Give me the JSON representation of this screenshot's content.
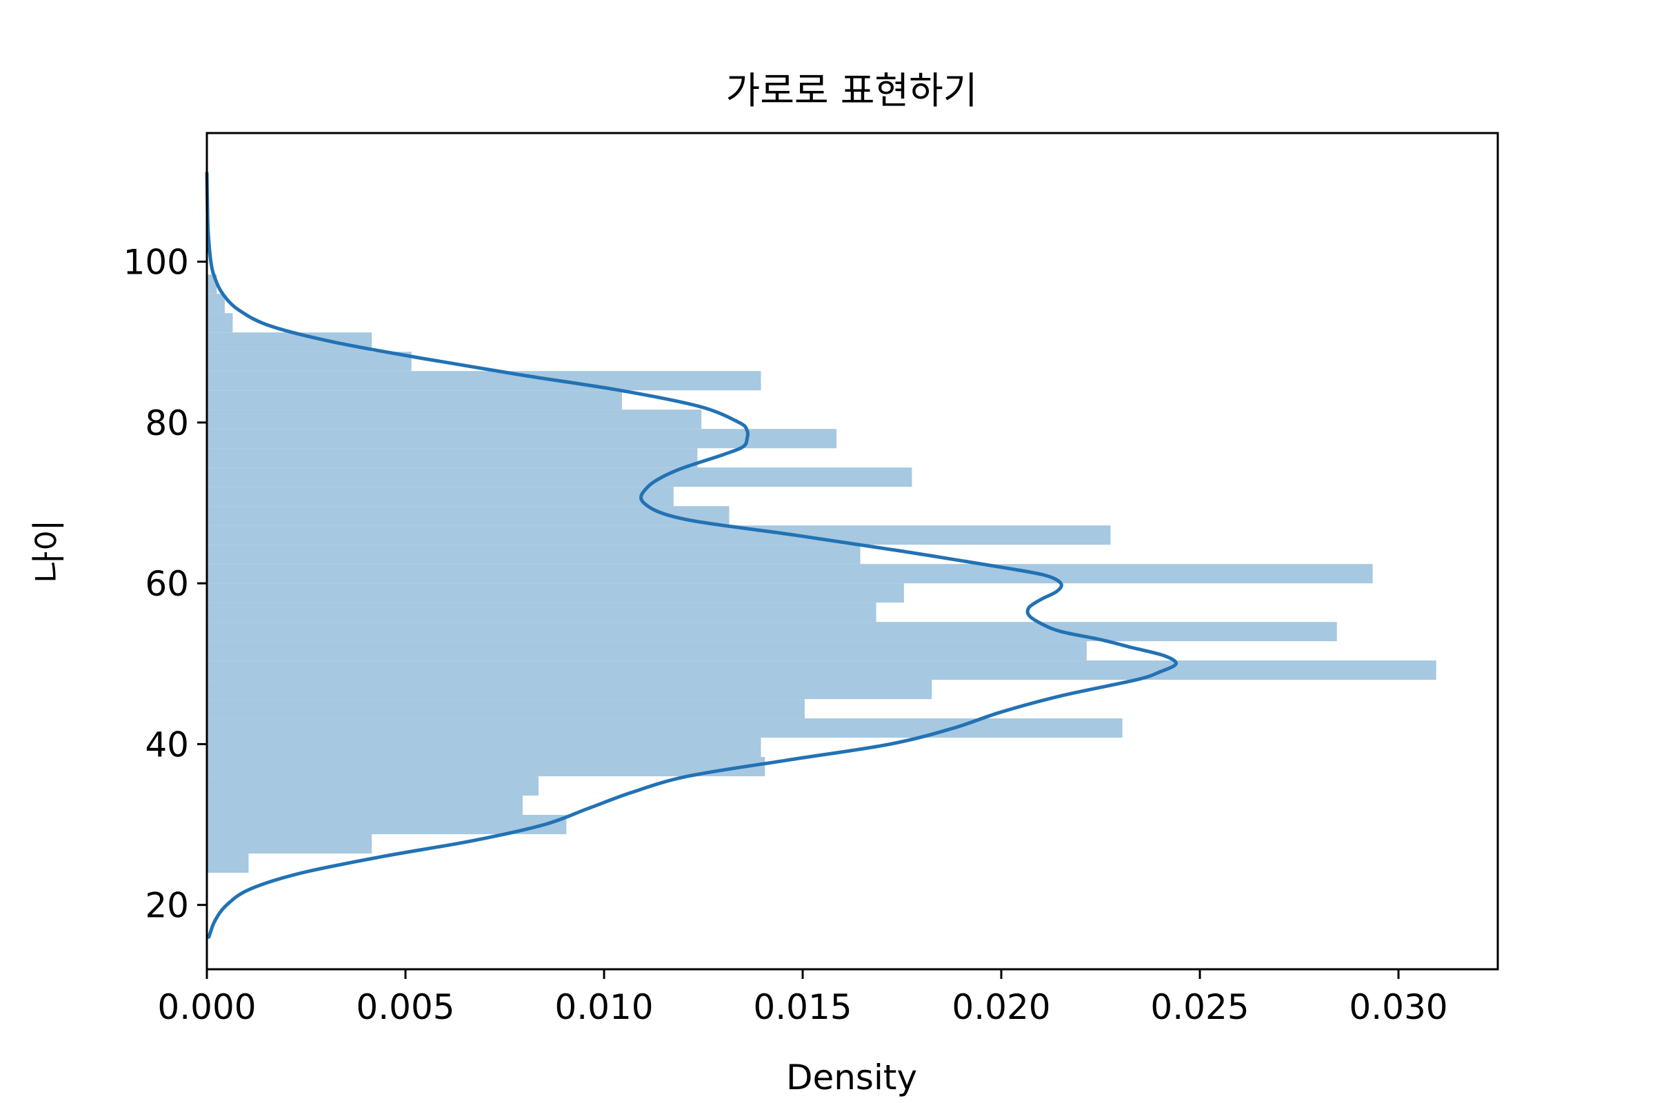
{
  "chart_data": {
    "type": "histogram",
    "orientation": "horizontal",
    "title": "가로로 표현하기",
    "xlabel": "Density",
    "ylabel": "나이",
    "xlim": [
      0.0,
      0.0325
    ],
    "ylim": [
      12,
      116
    ],
    "x_ticks": [
      0.0,
      0.005,
      0.01,
      0.015,
      0.02,
      0.025,
      0.03
    ],
    "x_tick_labels": [
      "0.000",
      "0.005",
      "0.010",
      "0.015",
      "0.020",
      "0.025",
      "0.030"
    ],
    "y_ticks": [
      20,
      40,
      60,
      80,
      100
    ],
    "y_tick_labels": [
      "20",
      "40",
      "60",
      "80",
      "100"
    ],
    "grid": false,
    "bar_color": "#a6c8e0",
    "kde_color": "#2272b4",
    "bins": [
      {
        "y0": 24.0,
        "y1": 26.4,
        "density": 0.00105
      },
      {
        "y0": 26.4,
        "y1": 28.8,
        "density": 0.00415
      },
      {
        "y0": 28.8,
        "y1": 31.2,
        "density": 0.00905
      },
      {
        "y0": 31.2,
        "y1": 33.6,
        "density": 0.00795
      },
      {
        "y0": 33.6,
        "y1": 36.0,
        "density": 0.00835
      },
      {
        "y0": 36.0,
        "y1": 38.4,
        "density": 0.01405
      },
      {
        "y0": 38.4,
        "y1": 40.8,
        "density": 0.01395
      },
      {
        "y0": 40.8,
        "y1": 43.2,
        "density": 0.02305
      },
      {
        "y0": 43.2,
        "y1": 45.6,
        "density": 0.01505
      },
      {
        "y0": 45.6,
        "y1": 48.0,
        "density": 0.01825
      },
      {
        "y0": 48.0,
        "y1": 50.4,
        "density": 0.03095
      },
      {
        "y0": 50.4,
        "y1": 52.8,
        "density": 0.02215
      },
      {
        "y0": 52.8,
        "y1": 55.2,
        "density": 0.02845
      },
      {
        "y0": 55.2,
        "y1": 57.6,
        "density": 0.01685
      },
      {
        "y0": 57.6,
        "y1": 60.0,
        "density": 0.01755
      },
      {
        "y0": 60.0,
        "y1": 62.4,
        "density": 0.02935
      },
      {
        "y0": 62.4,
        "y1": 64.8,
        "density": 0.01645
      },
      {
        "y0": 64.8,
        "y1": 67.2,
        "density": 0.02275
      },
      {
        "y0": 67.2,
        "y1": 69.6,
        "density": 0.01315
      },
      {
        "y0": 69.6,
        "y1": 72.0,
        "density": 0.01175
      },
      {
        "y0": 72.0,
        "y1": 74.4,
        "density": 0.01775
      },
      {
        "y0": 74.4,
        "y1": 76.8,
        "density": 0.01235
      },
      {
        "y0": 76.8,
        "y1": 79.2,
        "density": 0.01585
      },
      {
        "y0": 79.2,
        "y1": 81.6,
        "density": 0.01245
      },
      {
        "y0": 81.6,
        "y1": 84.0,
        "density": 0.01045
      },
      {
        "y0": 84.0,
        "y1": 86.4,
        "density": 0.01395
      },
      {
        "y0": 86.4,
        "y1": 88.8,
        "density": 0.00515
      },
      {
        "y0": 88.8,
        "y1": 91.2,
        "density": 0.00415
      },
      {
        "y0": 91.2,
        "y1": 93.6,
        "density": 0.00065
      },
      {
        "y0": 93.6,
        "y1": 96.0,
        "density": 0.00045
      },
      {
        "y0": 96.0,
        "y1": 98.4,
        "density": 0.00025
      }
    ],
    "kde": {
      "y": [
        16,
        18,
        20,
        22,
        24,
        26,
        28,
        30,
        32,
        34,
        36,
        38,
        40,
        42,
        44,
        46,
        48,
        49,
        50,
        51,
        52,
        53,
        54,
        55,
        56,
        57,
        58,
        59,
        60,
        61,
        62,
        64,
        66,
        68,
        70,
        72,
        74,
        76,
        77,
        78,
        79,
        80,
        82,
        84,
        86,
        88,
        90,
        92,
        94,
        96,
        98,
        100,
        104,
        108,
        111
      ],
      "density": [
        5e-05,
        0.0002,
        0.0005,
        0.0011,
        0.0024,
        0.0044,
        0.0067,
        0.0085,
        0.0096,
        0.0107,
        0.0121,
        0.0146,
        0.0172,
        0.0188,
        0.02,
        0.0215,
        0.0234,
        0.024,
        0.0244,
        0.0241,
        0.0233,
        0.0225,
        0.0215,
        0.021,
        0.0207,
        0.0207,
        0.021,
        0.0214,
        0.0215,
        0.0211,
        0.02,
        0.0175,
        0.0148,
        0.012,
        0.011,
        0.0111,
        0.0118,
        0.013,
        0.0135,
        0.0136,
        0.0136,
        0.0134,
        0.0124,
        0.0104,
        0.0078,
        0.0054,
        0.0032,
        0.0016,
        0.0008,
        0.0004,
        0.0002,
        0.0001,
        3e-05,
        1e-05,
        0.0
      ]
    }
  }
}
